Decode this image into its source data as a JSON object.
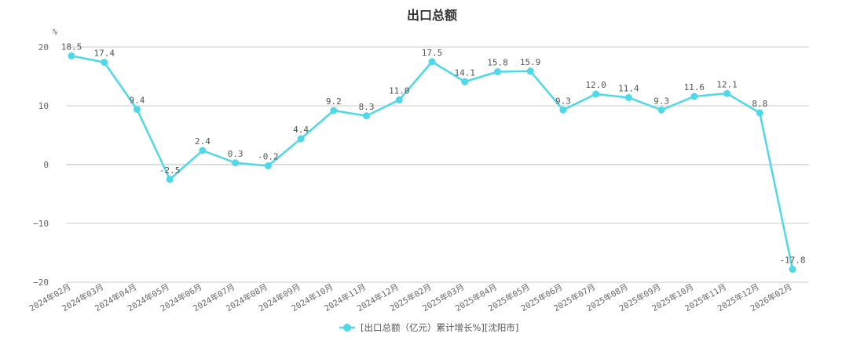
{
  "chart_data": {
    "type": "line",
    "title": "出口总额",
    "unit": "%",
    "categories": [
      "2024年02月",
      "2024年03月",
      "2024年04月",
      "2024年05月",
      "2024年06月",
      "2024年07月",
      "2024年08月",
      "2024年09月",
      "2024年10月",
      "2024年11月",
      "2024年12月",
      "2025年02月",
      "2025年03月",
      "2025年04月",
      "2025年05月",
      "2025年06月",
      "2025年07月",
      "2025年08月",
      "2025年09月",
      "2025年10月",
      "2025年11月",
      "2025年12月",
      "2026年02月"
    ],
    "series": [
      {
        "name": "[出口总额（亿元）累计增长%][沈阳市]",
        "color": "#4dd9e8",
        "values": [
          18.5,
          17.4,
          9.4,
          -2.5,
          2.4,
          0.3,
          -0.2,
          4.4,
          9.2,
          8.3,
          11.0,
          17.5,
          14.1,
          15.8,
          15.9,
          9.3,
          12.0,
          11.4,
          9.3,
          11.6,
          12.1,
          8.8,
          -17.8
        ],
        "labels": [
          "18.5",
          "17.4",
          "9.4",
          "-2.5",
          "2.4",
          "0.3",
          "-0.2",
          "4.4",
          "9.2",
          "8.3",
          "11.0",
          "17.5",
          "14.1",
          "15.8",
          "15.9",
          "9.3",
          "12.0",
          "11.4",
          "9.3",
          "11.6",
          "12.1",
          "8.8",
          "-17.8"
        ]
      }
    ],
    "yticks": [
      20,
      10,
      0,
      -10,
      -20
    ],
    "yticklabels": [
      "20",
      "10",
      "0",
      "−10",
      "−20"
    ],
    "ylim": [
      -20,
      20
    ],
    "grid": true,
    "legend_position": "bottom-center"
  }
}
